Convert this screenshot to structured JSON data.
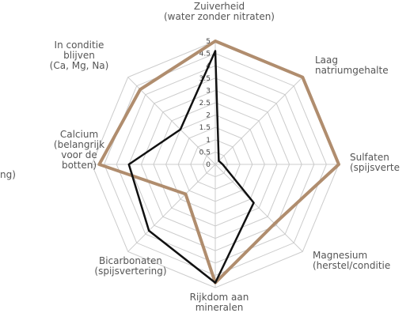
{
  "chart_data": {
    "type": "radar",
    "axes": [
      [
        "Zuiverheid",
        "(water zonder nitraten)"
      ],
      [
        "Laag",
        "natriumgehalte"
      ],
      [
        "Sulfaten",
        "(spijsverte"
      ],
      [
        "Magnesium",
        "(herstel/conditie"
      ],
      [
        "Rijkdom aan",
        "mineralen"
      ],
      [
        "Bicarbonaten",
        "(spijsvertering)"
      ],
      [
        "Calcium",
        "(belangrijk",
        "voor de",
        "botten)"
      ],
      [
        "In conditie",
        "blijven",
        "(Ca, Mg, Na)"
      ]
    ],
    "annotations": [
      "ng)"
    ],
    "series": [
      {
        "color": "#b08d6e",
        "values": [
          5,
          5,
          5,
          3.4,
          4.8,
          1.7,
          4.7,
          4.3
        ]
      },
      {
        "color": "#111111",
        "values": [
          4.6,
          0.2,
          0.3,
          2.2,
          4.8,
          3.8,
          3.5,
          2
        ]
      }
    ],
    "rlim": [
      0,
      5
    ],
    "rticks": [
      0,
      0.5,
      1,
      1.5,
      2,
      2.5,
      3,
      3.5,
      4,
      4.5,
      5
    ],
    "grid": true
  }
}
